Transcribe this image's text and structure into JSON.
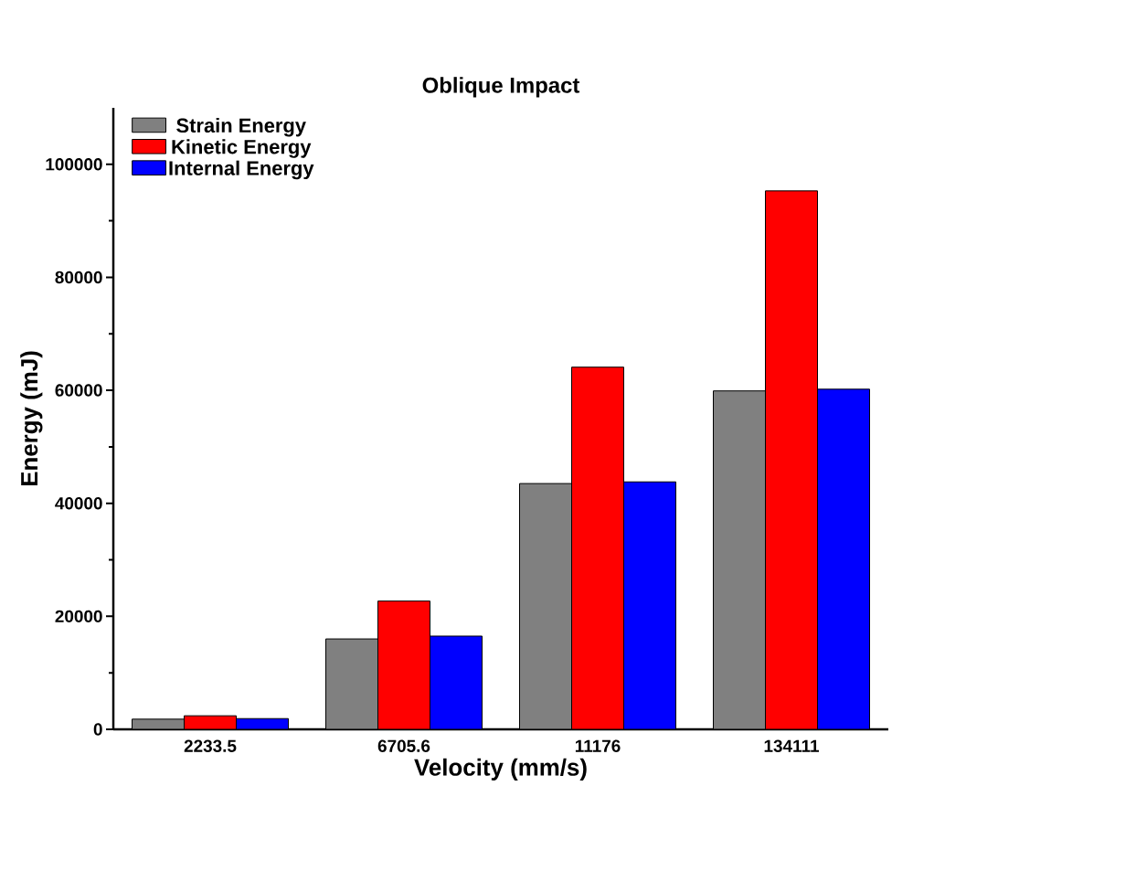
{
  "chart_data": {
    "type": "bar",
    "title": "Oblique Impact",
    "xlabel": "Velocity (mm/s)",
    "ylabel": "Energy (mJ)",
    "categories": [
      "2233.5",
      "6705.6",
      "11176",
      "134111"
    ],
    "series": [
      {
        "name": "Strain Energy",
        "color": "#808080",
        "values": [
          1800,
          16000,
          43500,
          59900
        ]
      },
      {
        "name": "Kinetic Energy",
        "color": "#ff0000",
        "values": [
          2400,
          22700,
          64100,
          95300
        ]
      },
      {
        "name": "Internal Energy",
        "color": "#0000ff",
        "values": [
          1900,
          16500,
          43800,
          60200
        ]
      }
    ],
    "ylim": [
      0,
      110000
    ],
    "yticks": [
      0,
      20000,
      40000,
      60000,
      80000,
      100000
    ],
    "legend": "top left",
    "grid": false
  }
}
